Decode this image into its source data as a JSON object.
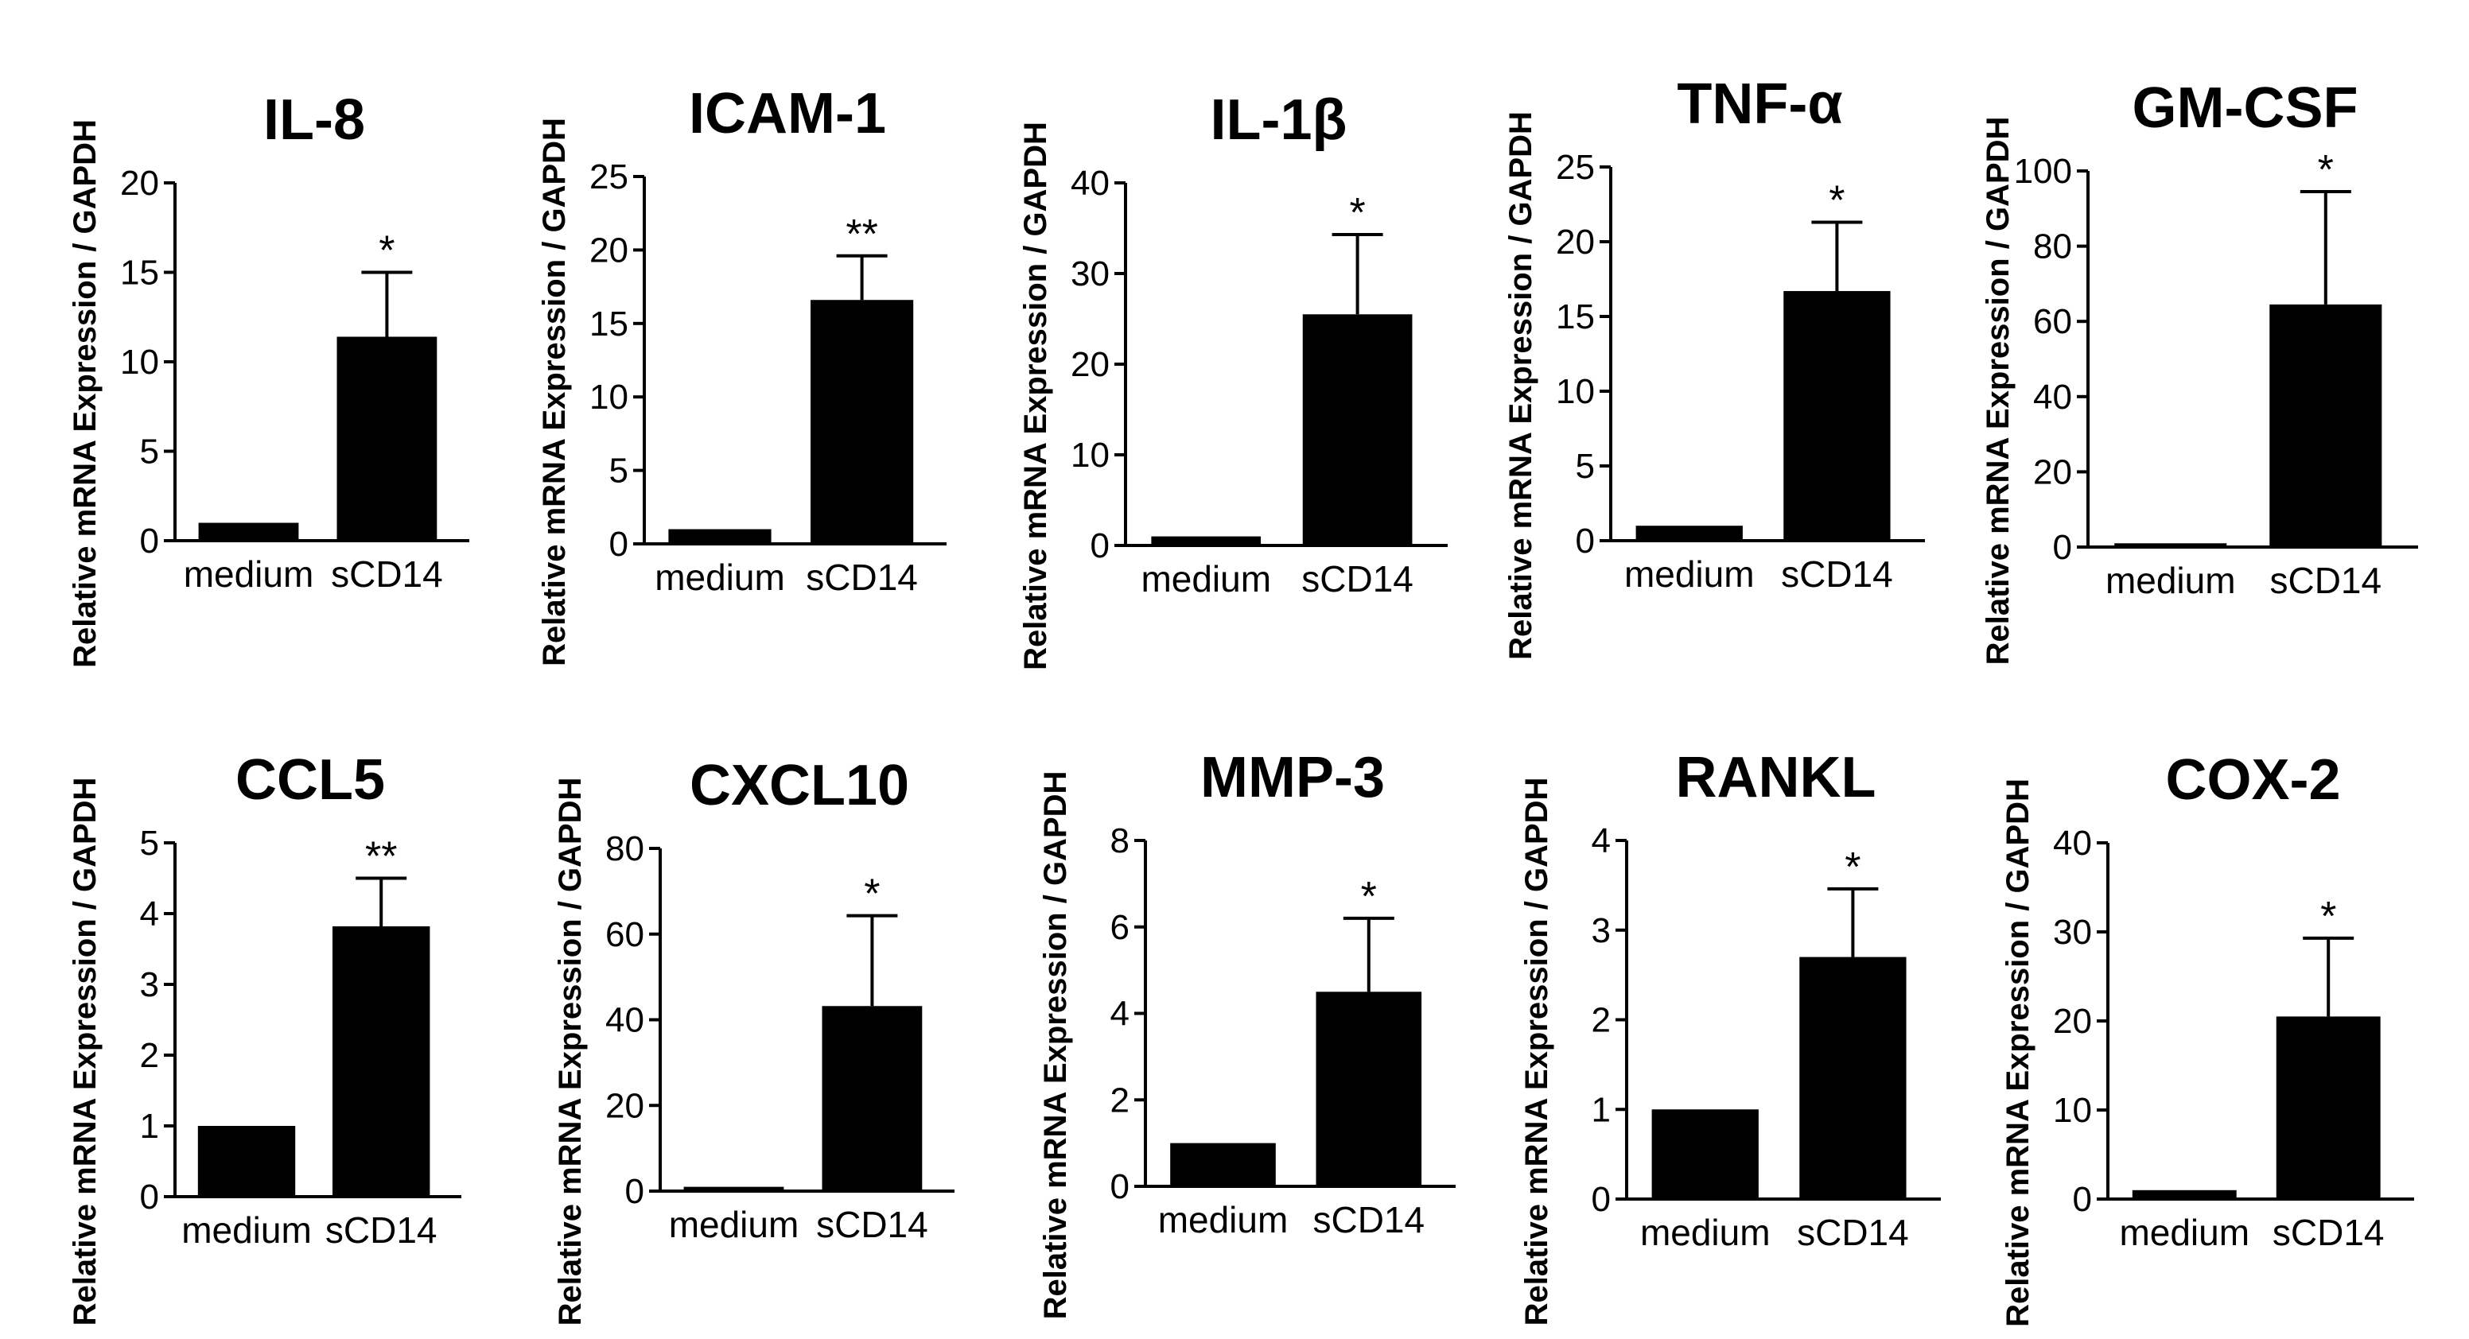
{
  "figure": {
    "background": "#ffffff",
    "bar_color": "#000000"
  },
  "chart_data": [
    {
      "type": "bar",
      "title": "IL-8",
      "ylabel": "Relative mRNA Expression / GAPDH",
      "categories": [
        "medium",
        "sCD14"
      ],
      "values": [
        1,
        11.4
      ],
      "errors": [
        0,
        3.6
      ],
      "ylim": [
        0,
        20
      ],
      "yticks": [
        0,
        5,
        10,
        15,
        20
      ],
      "significance": [
        "",
        "*"
      ]
    },
    {
      "type": "bar",
      "title": "ICAM-1",
      "ylabel": "Relative mRNA Expression / GAPDH",
      "categories": [
        "medium",
        "sCD14"
      ],
      "values": [
        1,
        16.6
      ],
      "errors": [
        0,
        3.0
      ],
      "ylim": [
        0,
        25
      ],
      "yticks": [
        0,
        5,
        10,
        15,
        20,
        25
      ],
      "significance": [
        "",
        "**"
      ]
    },
    {
      "type": "bar",
      "title": "IL-1β",
      "ylabel": "Relative mRNA Expression / GAPDH",
      "categories": [
        "medium",
        "sCD14"
      ],
      "values": [
        1,
        25.5
      ],
      "errors": [
        0,
        8.8
      ],
      "ylim": [
        0,
        40
      ],
      "yticks": [
        0,
        10,
        20,
        30,
        40
      ],
      "significance": [
        "",
        "*"
      ]
    },
    {
      "type": "bar",
      "title": "TNF-α",
      "ylabel": "Relative mRNA Expression / GAPDH",
      "categories": [
        "medium",
        "sCD14"
      ],
      "values": [
        1,
        16.7
      ],
      "errors": [
        0,
        4.6
      ],
      "ylim": [
        0,
        25
      ],
      "yticks": [
        0,
        5,
        10,
        15,
        20,
        25
      ],
      "significance": [
        "",
        "*"
      ]
    },
    {
      "type": "bar",
      "title": "GM-CSF",
      "ylabel": "Relative mRNA Expression / GAPDH",
      "categories": [
        "medium",
        "sCD14"
      ],
      "values": [
        1,
        64.5
      ],
      "errors": [
        0,
        30
      ],
      "ylim": [
        0,
        100
      ],
      "yticks": [
        0,
        20,
        40,
        60,
        80,
        100
      ],
      "significance": [
        "",
        "*"
      ]
    },
    {
      "type": "bar",
      "title": "CCL5",
      "ylabel": "Relative mRNA Expression / GAPDH",
      "categories": [
        "medium",
        "sCD14"
      ],
      "values": [
        1,
        3.82
      ],
      "errors": [
        0,
        0.68
      ],
      "ylim": [
        0,
        5
      ],
      "yticks": [
        0,
        1,
        2,
        3,
        4,
        5
      ],
      "significance": [
        "",
        "**"
      ]
    },
    {
      "type": "bar",
      "title": "CXCL10",
      "ylabel": "Relative mRNA Expression / GAPDH",
      "categories": [
        "medium",
        "sCD14"
      ],
      "values": [
        1,
        43.2
      ],
      "errors": [
        0,
        21.1
      ],
      "ylim": [
        0,
        80
      ],
      "yticks": [
        0,
        20,
        40,
        60,
        80
      ],
      "significance": [
        "",
        "*"
      ]
    },
    {
      "type": "bar",
      "title": "MMP-3",
      "ylabel": "Relative mRNA Expression / GAPDH",
      "categories": [
        "medium",
        "sCD14"
      ],
      "values": [
        1,
        4.5
      ],
      "errors": [
        0,
        1.7
      ],
      "ylim": [
        0,
        8
      ],
      "yticks": [
        0,
        2,
        4,
        6,
        8
      ],
      "significance": [
        "",
        "*"
      ]
    },
    {
      "type": "bar",
      "title": "RANKL",
      "ylabel": "Relative mRNA Expression / GAPDH",
      "categories": [
        "medium",
        "sCD14"
      ],
      "values": [
        1,
        2.7
      ],
      "errors": [
        0,
        0.76
      ],
      "ylim": [
        0,
        4
      ],
      "yticks": [
        0,
        1,
        2,
        3,
        4
      ],
      "significance": [
        "",
        "*"
      ]
    },
    {
      "type": "bar",
      "title": "COX-2",
      "ylabel": "Relative mRNA Expression / GAPDH",
      "categories": [
        "medium",
        "sCD14"
      ],
      "values": [
        1,
        20.5
      ],
      "errors": [
        0,
        8.8
      ],
      "ylim": [
        0,
        40
      ],
      "yticks": [
        0,
        10,
        20,
        30,
        40
      ],
      "significance": [
        "",
        "*"
      ]
    }
  ]
}
